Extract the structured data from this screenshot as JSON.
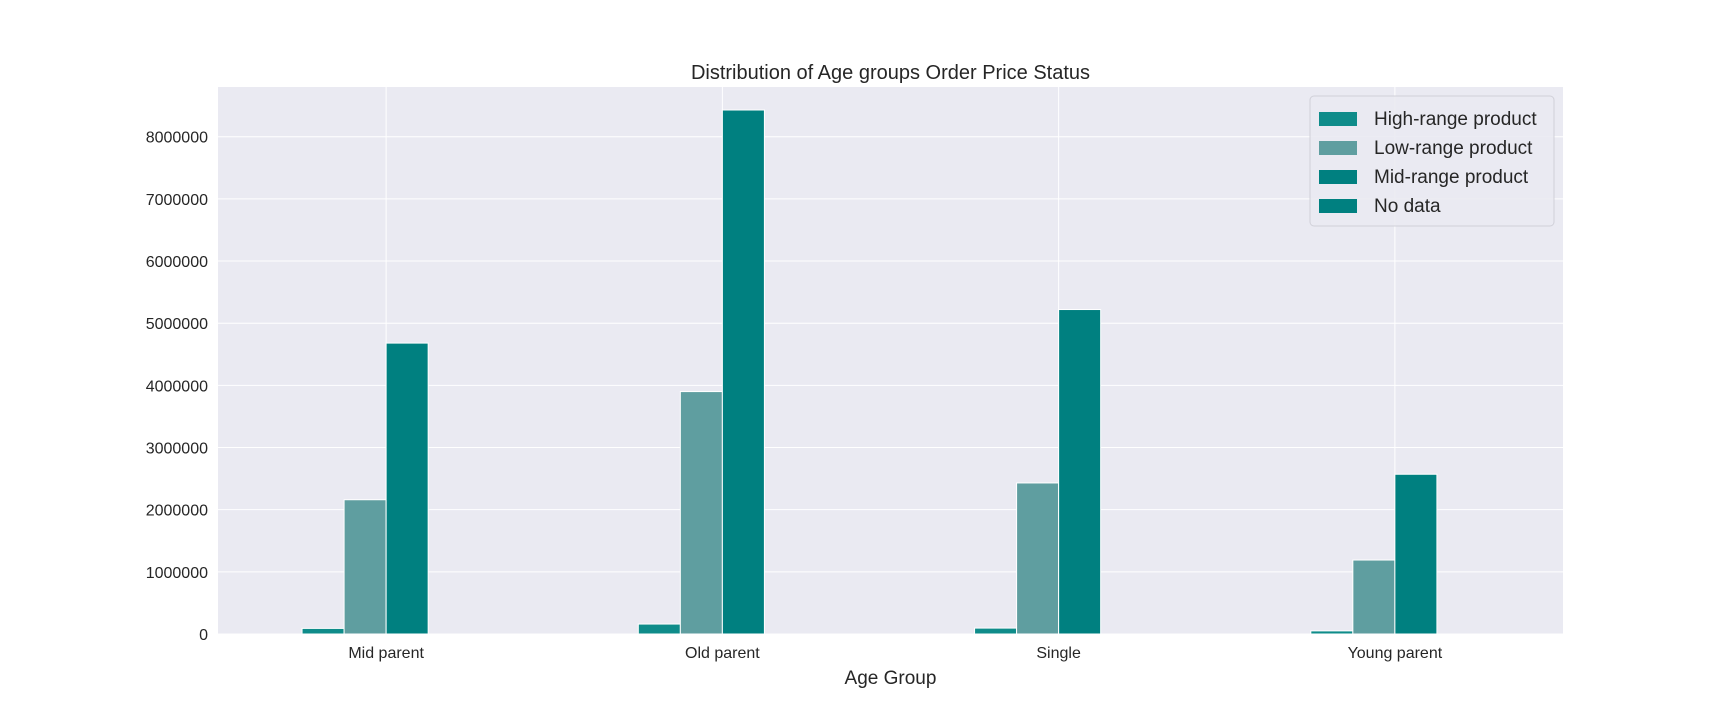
{
  "chart_data": {
    "type": "bar",
    "title": "Distribution of Age groups Order Price Status",
    "xlabel": "Age Group",
    "ylabel": "",
    "categories": [
      "Mid parent",
      "Old parent",
      "Single",
      "Young parent"
    ],
    "series": [
      {
        "name": "High-range product",
        "values": [
          90000,
          160000,
          95000,
          50000
        ],
        "color": "#0f8c8a"
      },
      {
        "name": "Low-range product",
        "values": [
          2160000,
          3900000,
          2430000,
          1190000
        ],
        "color": "#5f9ea0"
      },
      {
        "name": "Mid-range product",
        "values": [
          4680000,
          8430000,
          5220000,
          2570000
        ],
        "color": "#008080"
      },
      {
        "name": "No data",
        "values": [
          0,
          0,
          0,
          0
        ],
        "color": "#008080"
      }
    ],
    "ylim": [
      0,
      8800000
    ],
    "yticks": [
      0,
      1000000,
      2000000,
      3000000,
      4000000,
      5000000,
      6000000,
      7000000,
      8000000
    ],
    "ytick_labels": [
      "0",
      "1000000",
      "2000000",
      "3000000",
      "4000000",
      "5000000",
      "6000000",
      "7000000",
      "8000000"
    ],
    "grid": true,
    "legend_position": "top-right",
    "background_color": "#eaeaf2",
    "grid_color": "#ffffff"
  }
}
